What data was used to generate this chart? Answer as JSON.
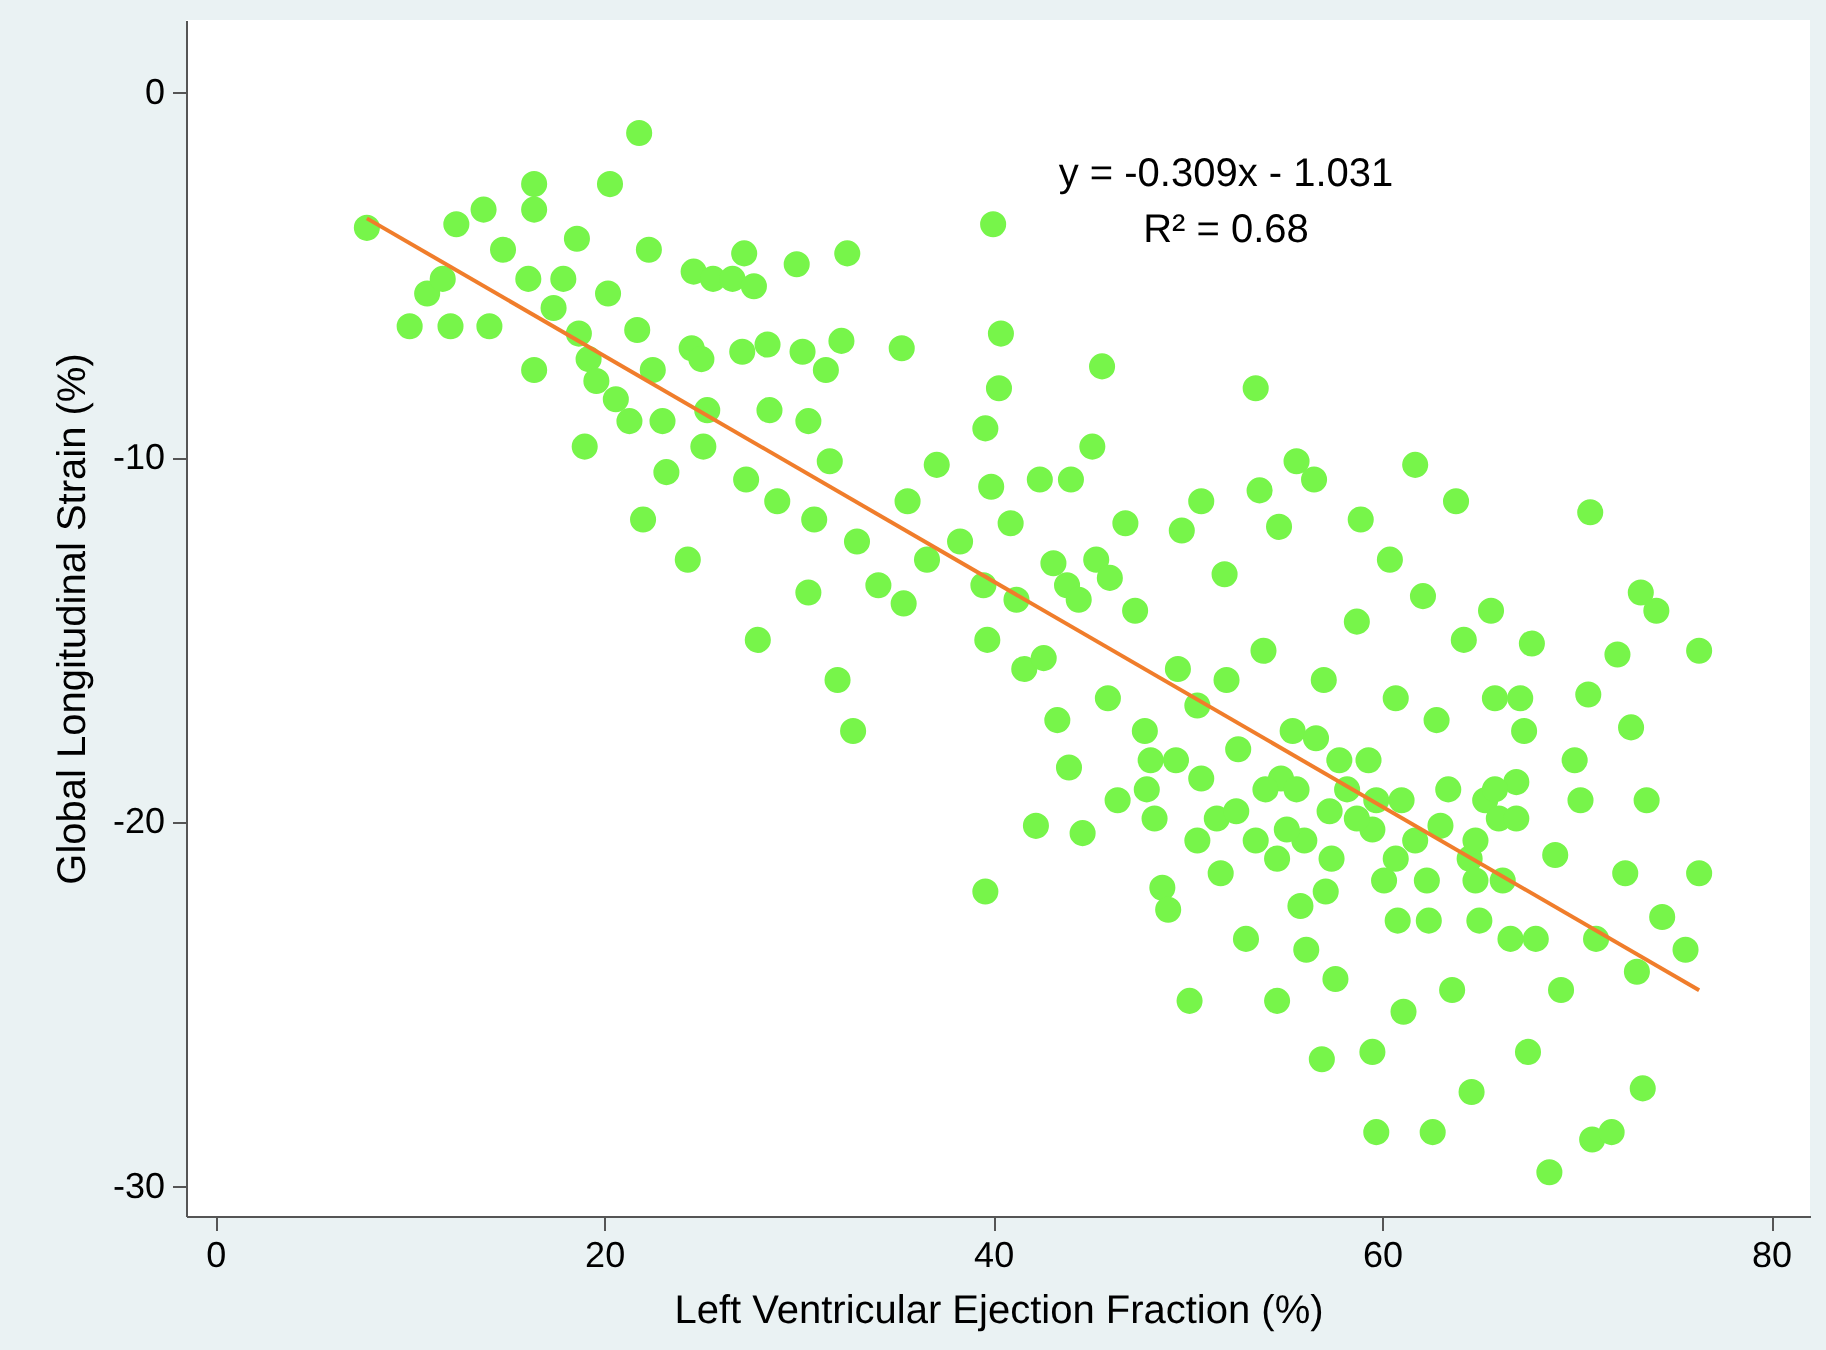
{
  "chart_data": {
    "type": "scatter",
    "xlabel": "Left Ventricular Ejection Fraction (%)",
    "ylabel": "Global Longitudinal Strain (%)",
    "annotations": [
      "y = -0.309x - 1.031",
      "R² = 0.68"
    ],
    "xlim": [
      -1.5,
      82
    ],
    "ylim": [
      -30.8,
      2
    ],
    "xticks": [
      0,
      20,
      40,
      60,
      80
    ],
    "yticks": [
      0,
      -10,
      -20,
      -30
    ],
    "grid": false,
    "series": [
      {
        "color": "#77f54a",
        "marker": "circle",
        "x": [
          7.8,
          10.0,
          10.9,
          11.7,
          12.1,
          12.4,
          13.8,
          14.1,
          14.8,
          16.4,
          16.4,
          16.1,
          16.4,
          17.4,
          17.9,
          18.6,
          18.7,
          19.2,
          19.6,
          20.2,
          20.3,
          19.0,
          20.6,
          21.3,
          21.8,
          21.7,
          22.3,
          22.5,
          23.0,
          22.0,
          23.2,
          24.5,
          24.6,
          25.0,
          25.3,
          25.1,
          24.3,
          25.6,
          26.6,
          27.2,
          27.7,
          27.1,
          28.4,
          28.5,
          27.9,
          27.3,
          28.9,
          30.2,
          29.9,
          30.5,
          30.8,
          30.5,
          31.4,
          31.6,
          32.5,
          32.2,
          32.0,
          32.8,
          33.0,
          34.1,
          35.3,
          35.6,
          35.4,
          37.1,
          36.6,
          38.3,
          39.5,
          40.0,
          39.6,
          39.9,
          40.3,
          40.4,
          39.7,
          39.6,
          40.9,
          41.2,
          41.6,
          42.4,
          42.6,
          42.2,
          43.1,
          43.8,
          44.0,
          43.3,
          43.9,
          44.4,
          44.6,
          45.1,
          45.6,
          45.3,
          45.9,
          46.0,
          46.8,
          47.3,
          47.8,
          48.1,
          48.3,
          48.7,
          49.0,
          49.5,
          50.1,
          49.7,
          50.5,
          50.7,
          51.5,
          51.7,
          51.9,
          52.0,
          52.6,
          53.0,
          53.5,
          53.7,
          53.9,
          54.6,
          54.7,
          54.8,
          55.4,
          55.6,
          55.8,
          56.1,
          56.5,
          56.9,
          57.0,
          57.3,
          57.4,
          57.6,
          58.7,
          58.9,
          59.3,
          59.5,
          59.5,
          59.7,
          60.1,
          60.4,
          60.7,
          60.8,
          61.0,
          61.1,
          61.7,
          62.1,
          62.4,
          62.6,
          62.8,
          63.0,
          63.4,
          63.6,
          63.8,
          64.2,
          64.5,
          64.6,
          64.8,
          65.0,
          65.3,
          65.6,
          65.8,
          66.0,
          66.2,
          66.6,
          66.9,
          67.1,
          67.3,
          67.5,
          67.7,
          67.9,
          68.6,
          68.9,
          69.2,
          69.9,
          70.2,
          70.6,
          70.7,
          70.8,
          71.0,
          71.8,
          72.1,
          72.5,
          72.8,
          73.1,
          73.3,
          73.4,
          73.6,
          74.1,
          74.4,
          75.6,
          76.3,
          76.3,
          55.6,
          56.6,
          57.8,
          58.2,
          56.0,
          55.1,
          58.7,
          59.7,
          61.7,
          62.3,
          60.7,
          49.4,
          50.7,
          52.5,
          54.0,
          46.4,
          47.9,
          50.5,
          53.5,
          54.6,
          57.1,
          64.8,
          65.8,
          66.9
        ],
        "values": [
          -3.7,
          -6.4,
          -5.5,
          -5.1,
          -6.4,
          -3.6,
          -3.2,
          -6.4,
          -4.3,
          -2.5,
          -3.2,
          -5.1,
          -7.6,
          -5.9,
          -5.1,
          -4.0,
          -6.6,
          -7.3,
          -7.9,
          -5.5,
          -2.5,
          -9.7,
          -8.4,
          -9.0,
          -1.1,
          -6.5,
          -4.3,
          -7.6,
          -9.0,
          -11.7,
          -10.4,
          -7.0,
          -4.9,
          -7.3,
          -8.7,
          -9.7,
          -12.8,
          -5.1,
          -5.1,
          -4.4,
          -5.3,
          -7.1,
          -6.9,
          -8.7,
          -15.0,
          -10.6,
          -11.2,
          -7.1,
          -4.7,
          -9.0,
          -11.7,
          -13.7,
          -7.6,
          -10.1,
          -4.4,
          -6.8,
          -16.1,
          -17.5,
          -12.3,
          -13.5,
          -7.0,
          -11.2,
          -14.0,
          -10.2,
          -12.8,
          -12.3,
          -13.5,
          -3.6,
          -9.2,
          -10.8,
          -8.1,
          -6.6,
          -15.0,
          -21.9,
          -11.8,
          -13.9,
          -15.8,
          -10.6,
          -15.5,
          -20.1,
          -12.9,
          -13.5,
          -10.6,
          -17.2,
          -18.5,
          -13.9,
          -20.3,
          -9.7,
          -7.5,
          -12.8,
          -16.6,
          -13.3,
          -11.8,
          -14.2,
          -17.5,
          -18.3,
          -19.9,
          -21.8,
          -22.4,
          -15.8,
          -24.9,
          -12.0,
          -16.8,
          -11.2,
          -19.9,
          -21.4,
          -13.2,
          -16.1,
          -18.0,
          -23.2,
          -8.1,
          -10.9,
          -15.3,
          -24.9,
          -11.9,
          -18.8,
          -17.5,
          -10.1,
          -22.3,
          -23.5,
          -10.6,
          -26.5,
          -16.1,
          -19.7,
          -21.0,
          -24.3,
          -14.5,
          -11.7,
          -18.3,
          -20.2,
          -26.3,
          -28.5,
          -21.6,
          -12.8,
          -16.6,
          -22.7,
          -19.4,
          -25.2,
          -10.2,
          -13.8,
          -22.7,
          -28.5,
          -17.2,
          -20.1,
          -19.1,
          -24.6,
          -11.2,
          -15.0,
          -21.0,
          -27.4,
          -20.5,
          -22.7,
          -19.4,
          -14.2,
          -16.6,
          -19.9,
          -21.6,
          -23.2,
          -18.9,
          -16.6,
          -17.5,
          -26.3,
          -15.1,
          -23.2,
          -29.6,
          -20.9,
          -24.6,
          -18.3,
          -19.4,
          -16.5,
          -11.5,
          -28.7,
          -23.2,
          -28.5,
          -15.4,
          -21.4,
          -17.4,
          -24.1,
          -13.7,
          -27.3,
          -19.4,
          -14.2,
          -22.6,
          -23.5,
          -15.3,
          -21.4,
          -19.1,
          -17.7,
          -18.3,
          -19.1,
          -20.5,
          -20.2,
          -19.9,
          -19.4,
          -20.5,
          -21.6,
          -21.0,
          -18.3,
          -18.8,
          -19.7,
          -19.1,
          -19.4,
          -19.1,
          -20.5,
          -20.5,
          -21.0,
          -21.9,
          -21.6,
          -19.1,
          -19.9
        ]
      },
      {
        "type": "line",
        "color": "#f07d2b",
        "marker": "none",
        "line_style": "solid",
        "x": [
          7.8,
          76.3
        ],
        "values": [
          -3.44,
          -24.61
        ]
      }
    ]
  }
}
